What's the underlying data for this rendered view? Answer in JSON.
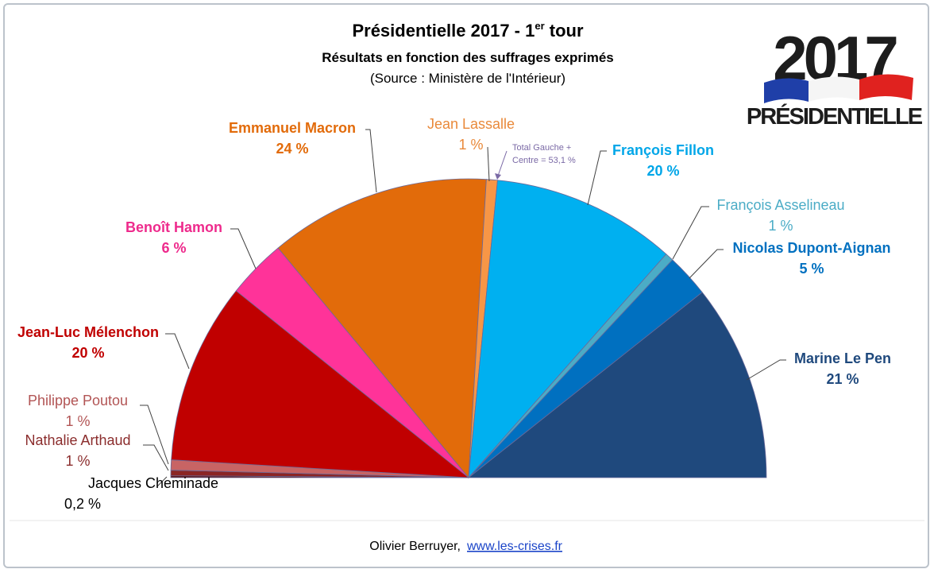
{
  "header": {
    "title": "Présidentielle  2017 - 1",
    "title_sup": "er",
    "title_end": " tour",
    "subtitle": "Résultats en fonction des suffrages exprimés",
    "source": "(Source : Ministère de l'Intérieur)"
  },
  "logo": {
    "year": "2017",
    "word": "PRÉSIDENTIELLE"
  },
  "annotation": {
    "line1": "Total Gauche +",
    "line2": "Centre = 53,1 %"
  },
  "footer": {
    "author": "Olivier Berruyer,",
    "link": "www.les-crises.fr"
  },
  "colors": {
    "background": "#ffffff",
    "border": "#bcc3cb",
    "link": "#1a44c8"
  },
  "chart_data": {
    "type": "pie",
    "variant": "semicircle",
    "slices": [
      {
        "name": "Jacques Cheminade",
        "value": 0.2,
        "label": "0,2 %",
        "color": "#5c1010",
        "text_color": "#000000",
        "bold": false
      },
      {
        "name": "Nathalie Arthaud",
        "value": 0.6,
        "label": "1 %",
        "color": "#8b2525",
        "text_color": "#8b2d2d",
        "bold": false
      },
      {
        "name": "Philippe Poutou",
        "value": 1.1,
        "label": "1 %",
        "color": "#c86464",
        "text_color": "#b25555",
        "bold": false
      },
      {
        "name": "Jean-Luc Mélenchon",
        "value": 19.6,
        "label": "20 %",
        "color": "#c00000",
        "text_color": "#c00000",
        "bold": true
      },
      {
        "name": "Benoît Hamon",
        "value": 6.4,
        "label": "6 %",
        "color": "#ff3399",
        "text_color": "#ee2a8c",
        "bold": true
      },
      {
        "name": "Emmanuel Macron",
        "value": 24.0,
        "label": "24 %",
        "color": "#e26b0a",
        "text_color": "#e26b0a",
        "bold": true
      },
      {
        "name": "Jean Lassalle",
        "value": 1.2,
        "label": "1 %",
        "color": "#f79646",
        "text_color": "#e9893a",
        "bold": false
      },
      {
        "name": "François Fillon",
        "value": 20.0,
        "label": "20 %",
        "color": "#00b0f0",
        "text_color": "#00a6e8",
        "bold": true
      },
      {
        "name": "François Asselineau",
        "value": 0.9,
        "label": "1 %",
        "color": "#4bacc6",
        "text_color": "#4bacc6",
        "bold": false
      },
      {
        "name": "Nicolas Dupont-Aignan",
        "value": 4.7,
        "label": "5 %",
        "color": "#0070c0",
        "text_color": "#0070c0",
        "bold": true
      },
      {
        "name": "Marine Le Pen",
        "value": 21.3,
        "label": "21 %",
        "color": "#1f497d",
        "text_color": "#1f497d",
        "bold": true
      }
    ]
  }
}
